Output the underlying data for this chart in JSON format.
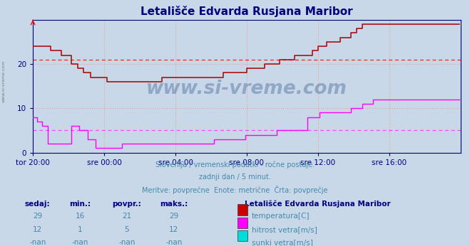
{
  "title": "Letališče Edvarda Rusjana Maribor",
  "bg_color": "#c8d8e8",
  "plot_bg_color": "#c8d8e8",
  "grid_color": "#e8a0a0",
  "title_color": "#000080",
  "tick_color": "#000080",
  "text_color": "#4488aa",
  "bold_color": "#000080",
  "subtitle1": "Slovenija / vremenski podatki - ročne postaje.",
  "subtitle2": "zadnji dan / 5 minut.",
  "subtitle3": "Meritve: povprečne  Enote: metrične  Črta: povprečje",
  "xlabel_ticks": [
    "tor 20:00",
    "sre 00:00",
    "sre 04:00",
    "sre 08:00",
    "sre 12:00",
    "sre 16:00"
  ],
  "ylabel_ticks": [
    0,
    10,
    20
  ],
  "ylim": [
    0,
    30
  ],
  "n_points": 288,
  "xtick_positions": [
    0,
    48,
    96,
    144,
    192,
    240
  ],
  "avg_temp": 21,
  "avg_wind": 5,
  "temp_color": "#aa0000",
  "wind_color": "#ff00ff",
  "avg_temp_color": "#ff2020",
  "avg_wind_color": "#ff44ff",
  "watermark": "www.si-vreme.com",
  "table_headers": [
    "sedaj:",
    "min.:",
    "povpr.:",
    "maks.:"
  ],
  "station_name": "Letališče Edvarda Rusjana Maribor",
  "rows": [
    {
      "sedaj": "29",
      "min": "16",
      "povpr": "21",
      "maks": "29",
      "color": "#cc0000",
      "label": "temperatura[C]"
    },
    {
      "sedaj": "12",
      "min": "1",
      "povpr": "5",
      "maks": "12",
      "color": "#ff00ff",
      "label": "hitrost vetra[m/s]"
    },
    {
      "sedaj": "-nan",
      "min": "-nan",
      "povpr": "-nan",
      "maks": "-nan",
      "color": "#00dddd",
      "label": "sunki vetra[m/s]"
    }
  ],
  "temp_data": [
    24,
    24,
    24,
    24,
    24,
    24,
    24,
    24,
    24,
    24,
    24,
    24,
    23,
    23,
    23,
    23,
    23,
    23,
    23,
    22,
    22,
    22,
    22,
    22,
    22,
    22,
    20,
    20,
    20,
    20,
    19,
    19,
    19,
    19,
    18,
    18,
    18,
    18,
    18,
    17,
    17,
    17,
    17,
    17,
    17,
    17,
    17,
    17,
    17,
    17,
    16,
    16,
    16,
    16,
    16,
    16,
    16,
    16,
    16,
    16,
    16,
    16,
    16,
    16,
    16,
    16,
    16,
    16,
    16,
    16,
    16,
    16,
    16,
    16,
    16,
    16,
    16,
    16,
    16,
    16,
    16,
    16,
    16,
    16,
    16,
    16,
    16,
    17,
    17,
    17,
    17,
    17,
    17,
    17,
    17,
    17,
    17,
    17,
    17,
    17,
    17,
    17,
    17,
    17,
    17,
    17,
    17,
    17,
    17,
    17,
    17,
    17,
    17,
    17,
    17,
    17,
    17,
    17,
    17,
    17,
    17,
    17,
    17,
    17,
    17,
    17,
    17,
    17,
    18,
    18,
    18,
    18,
    18,
    18,
    18,
    18,
    18,
    18,
    18,
    18,
    18,
    18,
    18,
    18,
    19,
    19,
    19,
    19,
    19,
    19,
    19,
    19,
    19,
    19,
    19,
    19,
    20,
    20,
    20,
    20,
    20,
    20,
    20,
    20,
    20,
    20,
    21,
    21,
    21,
    21,
    21,
    21,
    21,
    21,
    21,
    21,
    22,
    22,
    22,
    22,
    22,
    22,
    22,
    22,
    22,
    22,
    22,
    22,
    23,
    23,
    23,
    23,
    24,
    24,
    24,
    24,
    24,
    24,
    25,
    25,
    25,
    25,
    25,
    25,
    25,
    25,
    25,
    26,
    26,
    26,
    26,
    26,
    26,
    26,
    27,
    27,
    27,
    27,
    28,
    28,
    28,
    28,
    29,
    29,
    29,
    29,
    29,
    29,
    29,
    29,
    29,
    29,
    29,
    29,
    29,
    29,
    29,
    29,
    29,
    29,
    29,
    29,
    29,
    29,
    29,
    29,
    29,
    29,
    29,
    29,
    29,
    29,
    29,
    29,
    29,
    29,
    29,
    29,
    29,
    29,
    29,
    29,
    29,
    29,
    29,
    29,
    29,
    29,
    29,
    29,
    29,
    29,
    29,
    29,
    29,
    29,
    29,
    29,
    29,
    29,
    29,
    29,
    29,
    29,
    29,
    29,
    29,
    29
  ],
  "wind_data": [
    8,
    8,
    8,
    7,
    7,
    7,
    6,
    6,
    6,
    6,
    2,
    2,
    2,
    2,
    2,
    2,
    2,
    2,
    2,
    2,
    2,
    2,
    2,
    2,
    2,
    2,
    6,
    6,
    6,
    6,
    6,
    5,
    5,
    5,
    5,
    5,
    5,
    3,
    3,
    3,
    3,
    3,
    1,
    1,
    1,
    1,
    1,
    1,
    1,
    1,
    1,
    1,
    1,
    1,
    1,
    1,
    1,
    1,
    1,
    1,
    2,
    2,
    2,
    2,
    2,
    2,
    2,
    2,
    2,
    2,
    2,
    2,
    2,
    2,
    2,
    2,
    2,
    2,
    2,
    2,
    2,
    2,
    2,
    2,
    2,
    2,
    2,
    2,
    2,
    2,
    2,
    2,
    2,
    2,
    2,
    2,
    2,
    2,
    2,
    2,
    2,
    2,
    2,
    2,
    2,
    2,
    2,
    2,
    2,
    2,
    2,
    2,
    2,
    2,
    2,
    2,
    2,
    2,
    2,
    2,
    2,
    2,
    3,
    3,
    3,
    3,
    3,
    3,
    3,
    3,
    3,
    3,
    3,
    3,
    3,
    3,
    3,
    3,
    3,
    3,
    3,
    3,
    3,
    4,
    4,
    4,
    4,
    4,
    4,
    4,
    4,
    4,
    4,
    4,
    4,
    4,
    4,
    4,
    4,
    4,
    4,
    4,
    4,
    4,
    5,
    5,
    5,
    5,
    5,
    5,
    5,
    5,
    5,
    5,
    5,
    5,
    5,
    5,
    5,
    5,
    5,
    5,
    5,
    5,
    5,
    8,
    8,
    8,
    8,
    8,
    8,
    8,
    8,
    9,
    9,
    9,
    9,
    9,
    9,
    9,
    9,
    9,
    9,
    9,
    9,
    9,
    9,
    9,
    9,
    9,
    9,
    9,
    9,
    9,
    10,
    10,
    10,
    10,
    10,
    10,
    10,
    10,
    11,
    11,
    11,
    11,
    11,
    11,
    11,
    12,
    12,
    12,
    12,
    12,
    12,
    12,
    12,
    12,
    12,
    12,
    12,
    12,
    12,
    12,
    12,
    12,
    12,
    12,
    12,
    12,
    12,
    12,
    12,
    12,
    12,
    12,
    12,
    12,
    12,
    12,
    12,
    12,
    12,
    12,
    12,
    12,
    12,
    12,
    12,
    12,
    12,
    12,
    12,
    12,
    12,
    12,
    12,
    12,
    12,
    12,
    12,
    12,
    12,
    12,
    12,
    12,
    12,
    12
  ]
}
